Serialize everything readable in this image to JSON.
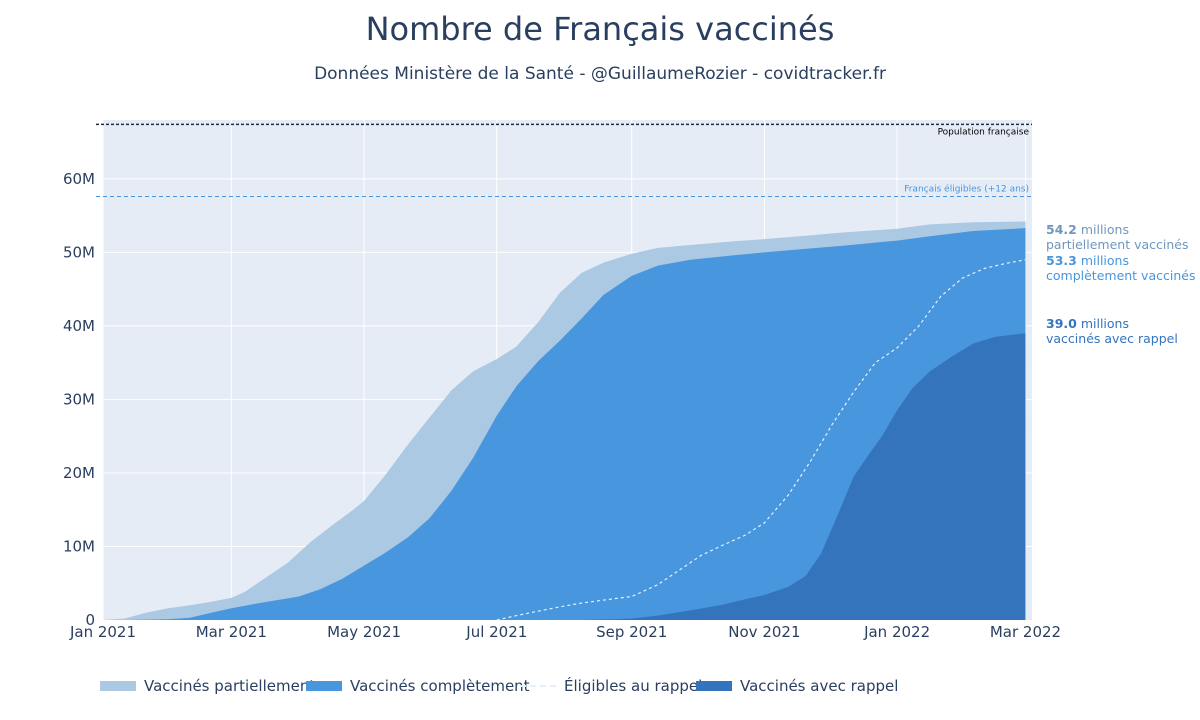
{
  "title": "Nombre de Français vaccinés",
  "subtitle": "Données Ministère de la Santé - @GuillaumeRozier - covidtracker.fr",
  "colors": {
    "plot_bg": "#e5ecf6",
    "grid": "#ffffff",
    "partiel": "#abc9e3",
    "complet": "#4796de",
    "rappel": "#3474bd",
    "eligible_rappel": "#e4f1fc",
    "population_line": "#1f2d4b",
    "eligibles_line": "#4796de",
    "text": "#2a3f5f"
  },
  "legend": {
    "partiel": "Vaccinés partiellement",
    "complet": "Vaccinés complètement",
    "eligible": "Éligibles au rappel",
    "rappel": "Vaccinés avec rappel"
  },
  "end_labels": {
    "partiel_value": "54.2",
    "partiel_unit": " millions",
    "partiel_text": "partiellement vaccinés",
    "complet_value": "53.3",
    "complet_unit": " millions",
    "complet_text": "complètement vaccinés",
    "rappel_value": "39.0",
    "rappel_unit": " millions",
    "rappel_text": "vaccinés avec rappel"
  },
  "chart_data": {
    "type": "area",
    "xlabel": "",
    "ylabel": "",
    "x_start": "2021-01-01",
    "x_end": "2022-03-06",
    "ylim": [
      0,
      68
    ],
    "x_ticks": [
      {
        "label": "Jan 2021",
        "day": 0
      },
      {
        "label": "Mar 2021",
        "day": 59
      },
      {
        "label": "May 2021",
        "day": 120
      },
      {
        "label": "Jul 2021",
        "day": 181
      },
      {
        "label": "Sep 2021",
        "day": 243
      },
      {
        "label": "Nov 2021",
        "day": 304
      },
      {
        "label": "Jan 2022",
        "day": 365
      },
      {
        "label": "Mar 2022",
        "day": 424
      }
    ],
    "y_ticks": [
      {
        "label": "0",
        "value": 0
      },
      {
        "label": "10M",
        "value": 10
      },
      {
        "label": "20M",
        "value": 20
      },
      {
        "label": "30M",
        "value": 30
      },
      {
        "label": "40M",
        "value": 40
      },
      {
        "label": "50M",
        "value": 50
      },
      {
        "label": "60M",
        "value": 60
      }
    ],
    "reference_lines": [
      {
        "name": "Population française",
        "value": 67.4
      },
      {
        "name": "Français éligibles (+12 ans)",
        "value": 57.6
      }
    ],
    "series": [
      {
        "name": "Vaccinés partiellement",
        "unit": "millions",
        "points": [
          [
            0,
            0
          ],
          [
            10,
            0.2
          ],
          [
            20,
            1.0
          ],
          [
            30,
            1.6
          ],
          [
            40,
            2.0
          ],
          [
            50,
            2.5
          ],
          [
            59,
            3.0
          ],
          [
            65,
            3.8
          ],
          [
            75,
            5.8
          ],
          [
            85,
            7.8
          ],
          [
            95,
            10.5
          ],
          [
            105,
            12.8
          ],
          [
            115,
            15.0
          ],
          [
            120,
            16.2
          ],
          [
            130,
            19.8
          ],
          [
            140,
            23.8
          ],
          [
            150,
            27.5
          ],
          [
            160,
            31.2
          ],
          [
            170,
            33.8
          ],
          [
            181,
            35.5
          ],
          [
            190,
            37.2
          ],
          [
            200,
            40.5
          ],
          [
            210,
            44.5
          ],
          [
            220,
            47.2
          ],
          [
            230,
            48.6
          ],
          [
            243,
            49.8
          ],
          [
            255,
            50.6
          ],
          [
            270,
            51.0
          ],
          [
            290,
            51.5
          ],
          [
            304,
            51.8
          ],
          [
            320,
            52.2
          ],
          [
            340,
            52.7
          ],
          [
            365,
            53.2
          ],
          [
            380,
            53.8
          ],
          [
            400,
            54.1
          ],
          [
            424,
            54.2
          ]
        ]
      },
      {
        "name": "Vaccinés complètement",
        "unit": "millions",
        "points": [
          [
            0,
            0
          ],
          [
            10,
            0
          ],
          [
            20,
            0.05
          ],
          [
            30,
            0.1
          ],
          [
            40,
            0.3
          ],
          [
            50,
            1.0
          ],
          [
            59,
            1.6
          ],
          [
            70,
            2.2
          ],
          [
            80,
            2.7
          ],
          [
            90,
            3.2
          ],
          [
            100,
            4.2
          ],
          [
            110,
            5.6
          ],
          [
            120,
            7.4
          ],
          [
            130,
            9.2
          ],
          [
            140,
            11.2
          ],
          [
            150,
            13.8
          ],
          [
            160,
            17.5
          ],
          [
            170,
            22.0
          ],
          [
            181,
            27.8
          ],
          [
            190,
            31.8
          ],
          [
            200,
            35.2
          ],
          [
            210,
            38.0
          ],
          [
            220,
            41.0
          ],
          [
            230,
            44.2
          ],
          [
            243,
            46.8
          ],
          [
            255,
            48.2
          ],
          [
            270,
            49.0
          ],
          [
            290,
            49.6
          ],
          [
            304,
            50.0
          ],
          [
            320,
            50.4
          ],
          [
            340,
            50.9
          ],
          [
            365,
            51.6
          ],
          [
            380,
            52.2
          ],
          [
            400,
            52.9
          ],
          [
            424,
            53.3
          ]
        ]
      },
      {
        "name": "Éligibles au rappel",
        "unit": "millions",
        "points": [
          [
            181,
            0
          ],
          [
            190,
            0.6
          ],
          [
            200,
            1.2
          ],
          [
            210,
            1.8
          ],
          [
            220,
            2.3
          ],
          [
            230,
            2.7
          ],
          [
            243,
            3.2
          ],
          [
            255,
            4.8
          ],
          [
            265,
            6.8
          ],
          [
            275,
            8.8
          ],
          [
            285,
            10.2
          ],
          [
            295,
            11.5
          ],
          [
            304,
            13.2
          ],
          [
            315,
            17.0
          ],
          [
            325,
            21.5
          ],
          [
            335,
            26.5
          ],
          [
            345,
            31.0
          ],
          [
            355,
            35.0
          ],
          [
            365,
            37.0
          ],
          [
            375,
            40.0
          ],
          [
            385,
            44.0
          ],
          [
            395,
            46.5
          ],
          [
            405,
            47.8
          ],
          [
            415,
            48.5
          ],
          [
            424,
            49.0
          ]
        ]
      },
      {
        "name": "Vaccinés avec rappel",
        "unit": "millions",
        "points": [
          [
            0,
            0
          ],
          [
            220,
            0
          ],
          [
            235,
            0.1
          ],
          [
            243,
            0.2
          ],
          [
            255,
            0.6
          ],
          [
            270,
            1.3
          ],
          [
            285,
            2.1
          ],
          [
            295,
            2.8
          ],
          [
            304,
            3.4
          ],
          [
            315,
            4.5
          ],
          [
            323,
            6.0
          ],
          [
            330,
            9.0
          ],
          [
            338,
            14.5
          ],
          [
            345,
            19.5
          ],
          [
            352,
            22.5
          ],
          [
            358,
            25.0
          ],
          [
            365,
            28.5
          ],
          [
            372,
            31.5
          ],
          [
            380,
            33.8
          ],
          [
            390,
            35.8
          ],
          [
            400,
            37.6
          ],
          [
            410,
            38.5
          ],
          [
            424,
            39.0
          ]
        ]
      }
    ]
  }
}
